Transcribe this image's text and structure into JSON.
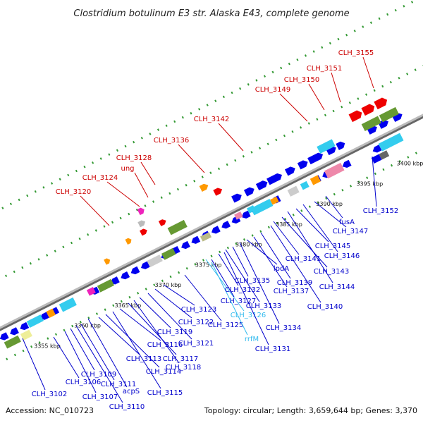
{
  "title": "Clostridium botulinum E3 str. Alaska E43, complete genome",
  "footer": {
    "accession": "Accession: NC_010723",
    "summary": "Topology: circular; Length: 3,659,644 bp; Genes: 3,370"
  },
  "colors": {
    "axis": "#999999",
    "blue": "#0000ee",
    "red": "#ee0000",
    "cyan": "#33ccee",
    "olive": "#669933",
    "orange": "#ff9900",
    "pink": "#ee88aa",
    "magenta": "#ee22bb",
    "grey": "#cccccc",
    "dotted": "#339933",
    "text_blue": "#0000cc",
    "text_red": "#cc0000",
    "text_cyan": "#33bbee"
  },
  "scale_ticks": [
    "3355 kbp",
    "3360 kbp",
    "3365 kbp",
    "3370 kbp",
    "3375 kbp",
    "3380 kbp",
    "3385 kbp",
    "3390 kbp",
    "3395 kbp",
    "3400 kbp"
  ],
  "upper_labels": [
    {
      "text": "CLH_3120",
      "color": "red"
    },
    {
      "text": "CLH_3124",
      "color": "red"
    },
    {
      "text": "CLH_3128",
      "color": "red"
    },
    {
      "text": "ung",
      "color": "red"
    },
    {
      "text": "CLH_3136",
      "color": "red"
    },
    {
      "text": "CLH_3142",
      "color": "red"
    },
    {
      "text": "CLH_3149",
      "color": "red"
    },
    {
      "text": "CLH_3150",
      "color": "red"
    },
    {
      "text": "CLH_3151",
      "color": "red"
    },
    {
      "text": "CLH_3155",
      "color": "red"
    }
  ],
  "lower_labels": [
    {
      "text": "CLH_3102",
      "color": "blue"
    },
    {
      "text": "CLH_3106",
      "color": "blue"
    },
    {
      "text": "CLH_3107",
      "color": "blue"
    },
    {
      "text": "CLH_3109",
      "color": "blue"
    },
    {
      "text": "CLH_3110",
      "color": "blue"
    },
    {
      "text": "CLH_3111",
      "color": "blue"
    },
    {
      "text": "acpS",
      "color": "blue"
    },
    {
      "text": "CLH_3113",
      "color": "blue"
    },
    {
      "text": "CLH_3114",
      "color": "blue"
    },
    {
      "text": "CLH_3115",
      "color": "blue"
    },
    {
      "text": "CLH_3116",
      "color": "blue"
    },
    {
      "text": "CLH_3117",
      "color": "blue"
    },
    {
      "text": "CLH_3118",
      "color": "blue"
    },
    {
      "text": "CLH_3119",
      "color": "blue"
    },
    {
      "text": "CLH_3121",
      "color": "blue"
    },
    {
      "text": "CLH_3122",
      "color": "blue"
    },
    {
      "text": "CLH_3123",
      "color": "blue"
    },
    {
      "text": "CLH_3125",
      "color": "blue"
    },
    {
      "text": "CLH_3126",
      "color": "cyan"
    },
    {
      "text": "CLH_3127",
      "color": "blue"
    },
    {
      "text": "rrfM",
      "color": "cyan"
    },
    {
      "text": "CLH_3131",
      "color": "blue"
    },
    {
      "text": "CLH_3132",
      "color": "blue"
    },
    {
      "text": "CLH_3133",
      "color": "blue"
    },
    {
      "text": "CLH_3134",
      "color": "blue"
    },
    {
      "text": "CLH_3135",
      "color": "blue"
    },
    {
      "text": "lpdA",
      "color": "blue"
    },
    {
      "text": "CLH_3137",
      "color": "blue"
    },
    {
      "text": "CLH_3139",
      "color": "blue"
    },
    {
      "text": "CLH_3140",
      "color": "blue"
    },
    {
      "text": "CLH_3141",
      "color": "blue"
    },
    {
      "text": "CLH_3143",
      "color": "blue"
    },
    {
      "text": "CLH_3144",
      "color": "blue"
    },
    {
      "text": "CLH_3145",
      "color": "blue"
    },
    {
      "text": "CLH_3146",
      "color": "blue"
    },
    {
      "text": "CLH_3147",
      "color": "blue"
    },
    {
      "text": "fusA",
      "color": "blue"
    },
    {
      "text": "CLH_3152",
      "color": "blue"
    }
  ]
}
